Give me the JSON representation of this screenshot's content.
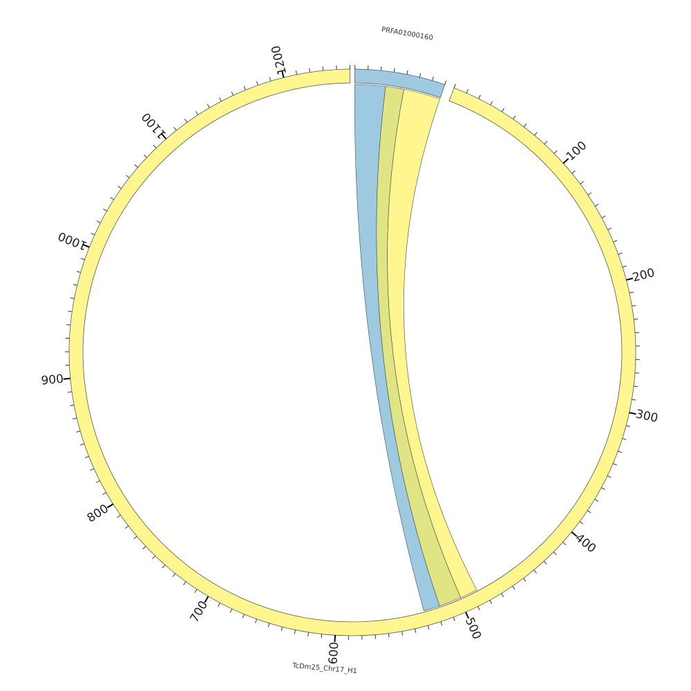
{
  "colors": {
    "chromosome": "#fff68f",
    "contig": "#9ecae1",
    "ribbon_a": "#fff68f",
    "ribbon_b": "#dfe484",
    "ribbon_c": "#9ecae1"
  },
  "chromosome": {
    "name": "TcDm25_Chr17_H1",
    "length": 1250,
    "tick_labels": [
      "100",
      "200",
      "300",
      "400",
      "500",
      "600",
      "700",
      "800",
      "900",
      "1000",
      "1100",
      "1200"
    ]
  },
  "contig": {
    "name": "PRFA01000160",
    "length": 70
  },
  "links": [
    {
      "contig_start": 0,
      "contig_end": 25,
      "chrom_start": 517,
      "chrom_end": 530
    },
    {
      "contig_start": 25,
      "contig_end": 40,
      "chrom_start": 499,
      "chrom_end": 517
    },
    {
      "contig_start": 40,
      "contig_end": 70,
      "chrom_start": 485,
      "chrom_end": 499
    }
  ]
}
